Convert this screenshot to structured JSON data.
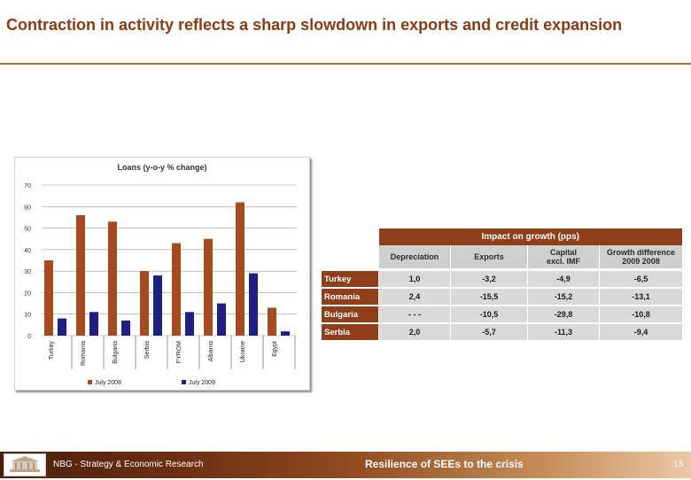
{
  "slide": {
    "title": "Contraction in activity reflects a sharp slowdown in exports and credit expansion",
    "footer_left": "NBG - Strategy & Economic Research",
    "footer_center": "Resilience of SEEs to the crisis",
    "page_number": "13",
    "colors": {
      "title": "#8b3a12",
      "accent_rule": "#b3762e",
      "july2008": "#a64b1d",
      "july2009": "#1f1f8a"
    }
  },
  "chart_data": {
    "type": "bar",
    "title": "Loans (y-o-y % change)",
    "categories": [
      "Turkey",
      "Romania",
      "Bulgaria",
      "Serbia",
      "FYROM",
      "Albania",
      "Ukraine",
      "Egypt"
    ],
    "series": [
      {
        "name": "July 2008",
        "color": "#a64b1d",
        "values": [
          35,
          56,
          53,
          30,
          43,
          45,
          62,
          13
        ]
      },
      {
        "name": "July 2009",
        "color": "#1f1f8a",
        "values": [
          8,
          11,
          7,
          28,
          11,
          15,
          29,
          2
        ]
      }
    ],
    "yticks": [
      0,
      10,
      20,
      30,
      40,
      50,
      60,
      70
    ],
    "ylim": [
      0,
      70
    ],
    "grid": true,
    "legend": "bottom"
  },
  "table": {
    "super_header": "Impact on growth (pps)",
    "columns": [
      {
        "line1": "Depreciation",
        "line2": ""
      },
      {
        "line1": "Exports",
        "line2": ""
      },
      {
        "line1": "Capital",
        "line2": "excl. IMF"
      },
      {
        "line1": "Growth difference",
        "line2": "2009 2008"
      }
    ],
    "rows": [
      {
        "country": "Turkey",
        "values": [
          "1,0",
          "-3,2",
          "-4,9",
          "-6,5"
        ]
      },
      {
        "country": "Romania",
        "values": [
          "2,4",
          "-15,5",
          "-15,2",
          "-13,1"
        ]
      },
      {
        "country": "Bulgaria",
        "values": [
          "- - -",
          "-10,5",
          "-29,8",
          "-10,8"
        ]
      },
      {
        "country": "Serbia",
        "values": [
          "2,0",
          "-5,7",
          "-11,3",
          "-9,4"
        ]
      }
    ]
  }
}
